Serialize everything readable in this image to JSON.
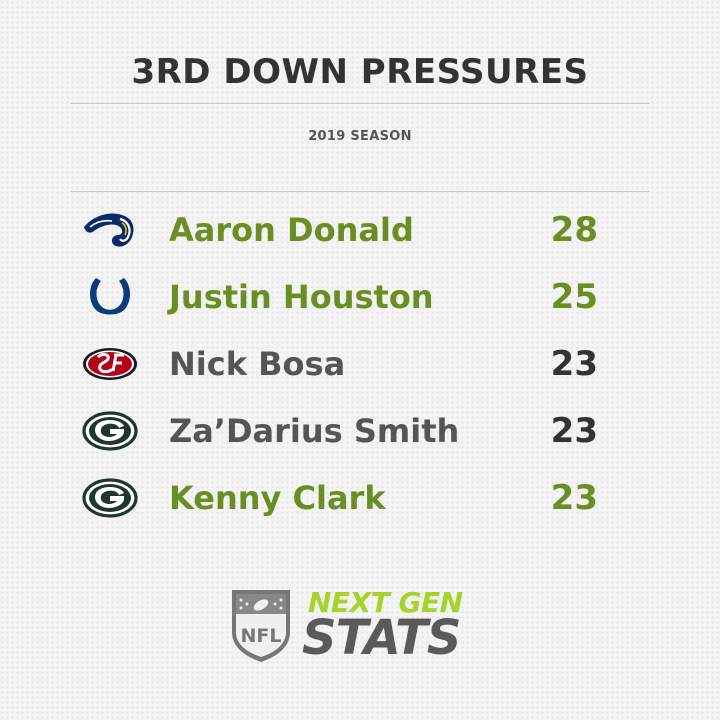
{
  "header": {
    "title": "3RD DOWN PRESSURES",
    "subtitle": "2019 SEASON"
  },
  "colors": {
    "highlight": "#6b8e23",
    "default_name": "#555555",
    "default_value": "#333333"
  },
  "rows": [
    {
      "logo": "rams-horn-icon",
      "name": "Aaron Donald",
      "value": "28",
      "highlight": true
    },
    {
      "logo": "colts-horseshoe-icon",
      "name": "Justin Houston",
      "value": "25",
      "highlight": true
    },
    {
      "logo": "49ers-oval-icon",
      "name": "Nick Bosa",
      "value": "23",
      "highlight": false
    },
    {
      "logo": "packers-g-icon",
      "name": "Za’Darius Smith",
      "value": "23",
      "highlight": false
    },
    {
      "logo": "packers-g-icon",
      "name": "Kenny Clark",
      "value": "23",
      "highlight": true
    }
  ],
  "brand": {
    "shield_text": "NFL",
    "line1": "NEXT GEN",
    "line2": "STATS"
  }
}
